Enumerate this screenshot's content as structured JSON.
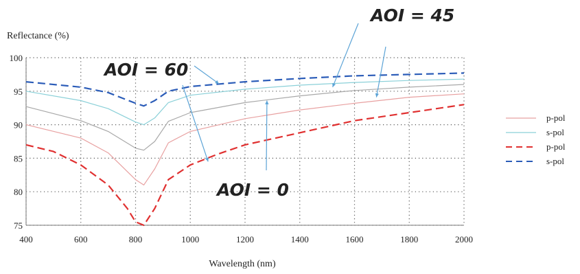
{
  "chart_data": {
    "type": "line",
    "title": "",
    "xlabel": "Wavelength (nm)",
    "ylabel": "Reflectance (%)",
    "xlim": [
      400,
      2000
    ],
    "ylim": [
      75,
      100
    ],
    "xticks": [
      400,
      600,
      800,
      1000,
      1200,
      1400,
      1600,
      1800,
      2000
    ],
    "yticks": [
      75,
      80,
      85,
      90,
      95,
      100
    ],
    "grid": "dotted",
    "legend_position": "right",
    "series": [
      {
        "name": "s-pol",
        "style": "dashed",
        "color": "#2b5cb8",
        "label": "AOI = 60",
        "x": [
          400,
          600,
          700,
          800,
          830,
          870,
          920,
          1000,
          1200,
          1400,
          1600,
          1800,
          2000
        ],
        "y": [
          96.4,
          95.6,
          94.8,
          93.2,
          92.8,
          93.6,
          95.0,
          95.7,
          96.4,
          96.9,
          97.3,
          97.5,
          97.7
        ]
      },
      {
        "name": "s-pol",
        "style": "solid",
        "color": "#8ad0d8",
        "label": "AOI = 45",
        "x": [
          400,
          600,
          700,
          800,
          830,
          870,
          920,
          1000,
          1200,
          1400,
          1600,
          1800,
          2000
        ],
        "y": [
          95.0,
          93.6,
          92.4,
          90.4,
          90.0,
          91.0,
          93.3,
          94.4,
          95.3,
          95.9,
          96.3,
          96.6,
          96.8
        ]
      },
      {
        "name": "s-pol",
        "style": "solid",
        "color": "#a8a8a8",
        "label": "AOI = 0",
        "x": [
          400,
          600,
          700,
          800,
          830,
          870,
          920,
          1000,
          1200,
          1400,
          1600,
          1800,
          2000
        ],
        "y": [
          92.7,
          90.6,
          89.0,
          86.5,
          86.2,
          87.5,
          90.5,
          91.8,
          93.3,
          94.3,
          95.1,
          95.6,
          96.0
        ]
      },
      {
        "name": "p-pol",
        "style": "solid",
        "color": "#e8a0a0",
        "label": "AOI = 45",
        "x": [
          400,
          600,
          700,
          800,
          830,
          870,
          920,
          1000,
          1200,
          1400,
          1600,
          1800,
          2000
        ],
        "y": [
          90.0,
          88.0,
          85.8,
          81.8,
          81.0,
          83.4,
          87.3,
          89.0,
          90.9,
          92.2,
          93.2,
          94.1,
          94.6
        ]
      },
      {
        "name": "p-pol",
        "style": "dashed",
        "color": "#e03030",
        "label": "AOI = 60",
        "x": [
          400,
          500,
          600,
          700,
          770,
          800,
          830,
          870,
          920,
          1000,
          1100,
          1200,
          1400,
          1600,
          1800,
          2000
        ],
        "y": [
          87.0,
          86.0,
          84.0,
          81.0,
          77.5,
          75.5,
          75.0,
          77.5,
          81.8,
          84.0,
          85.6,
          87.0,
          88.8,
          90.6,
          91.8,
          93.0
        ]
      }
    ],
    "legend": [
      {
        "label": "p-pol",
        "style": "solid",
        "color": "#e8a0a0"
      },
      {
        "label": "s-pol",
        "style": "solid",
        "color": "#8ad0d8"
      },
      {
        "label": "p-pol",
        "style": "dashed",
        "color": "#e03030"
      },
      {
        "label": "s-pol",
        "style": "dashed",
        "color": "#2b5cb8"
      }
    ],
    "annotations": [
      {
        "text": "AOI = 45",
        "arrow_targets": [
          [
            1520,
            95.6
          ],
          [
            1680,
            94.1
          ]
        ]
      },
      {
        "text": "AOI = 60",
        "arrow_targets": [
          [
            1105,
            96.1
          ],
          [
            1065,
            84.5
          ]
        ]
      },
      {
        "text": "AOI = 0",
        "arrow_targets": [
          [
            1280,
            93.6
          ]
        ]
      }
    ]
  }
}
